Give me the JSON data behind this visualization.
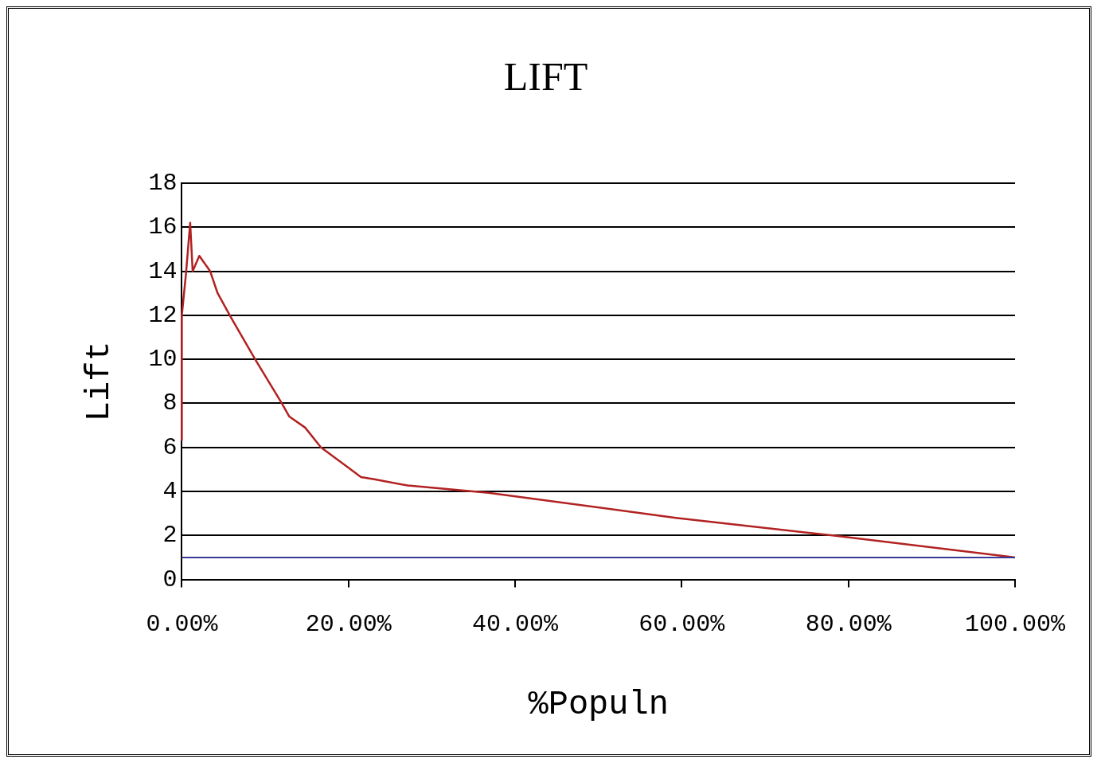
{
  "chart_data": {
    "type": "line",
    "title": "LIFT",
    "xlabel": "%Populn",
    "ylabel": "Lift",
    "x": [
      0,
      0,
      0.5,
      1.0,
      1.3,
      2.1,
      3.4,
      4.3,
      5.9,
      8.8,
      12.0,
      12.9,
      14.8,
      16.7,
      19.9,
      21.5,
      23.1,
      27.1,
      36.8,
      59.3,
      78.1,
      100
    ],
    "series": [
      {
        "color": "#b22222",
        "values": [
          6.3,
          12.0,
          13.9,
          16.2,
          14.0,
          14.7,
          14.0,
          13.0,
          11.9,
          10.0,
          8.0,
          7.4,
          6.9,
          6.0,
          5.1,
          4.65,
          4.55,
          4.27,
          3.94,
          2.8,
          2.0,
          1.0
        ]
      }
    ],
    "xlim": [
      0,
      100
    ],
    "xticks": [
      {
        "value": 0,
        "label": "0.00%"
      },
      {
        "value": 20,
        "label": "20.00%"
      },
      {
        "value": 40,
        "label": "40.00%"
      },
      {
        "value": 60,
        "label": "60.00%"
      },
      {
        "value": 80,
        "label": "80.00%"
      },
      {
        "value": 100,
        "label": "100.00%"
      }
    ],
    "ylim": [
      0,
      18
    ],
    "yticks": [
      0,
      2,
      4,
      6,
      8,
      10,
      12,
      14,
      16,
      18
    ],
    "ref_lines": [
      {
        "axis": "y",
        "value": 1,
        "color": "#3a3a9a"
      }
    ],
    "grid": "y",
    "legend": false,
    "marker": "none",
    "line_style": "solid"
  }
}
